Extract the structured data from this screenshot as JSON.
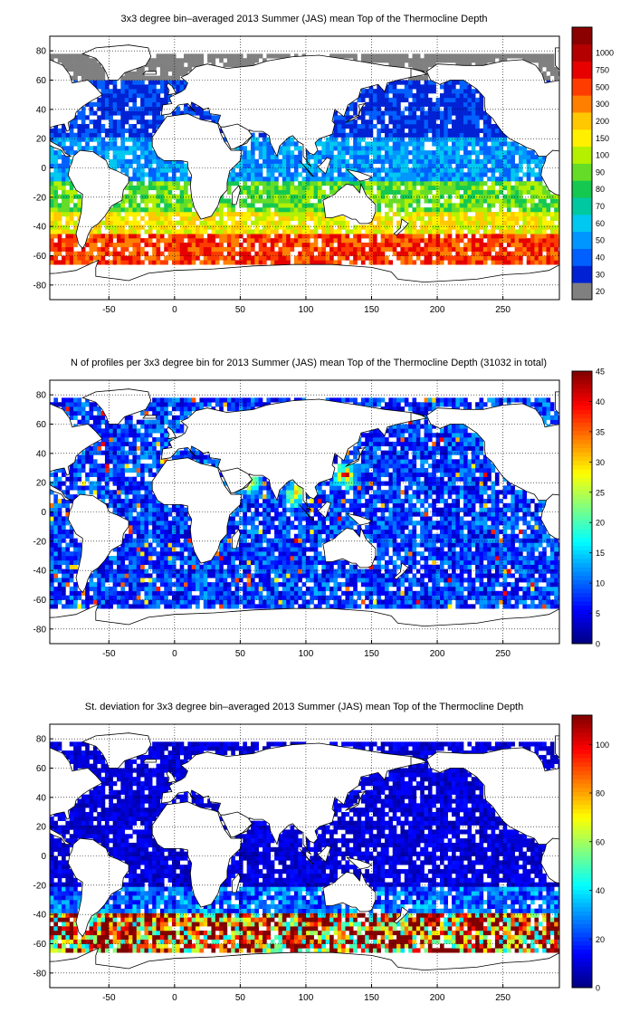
{
  "chart_data": [
    {
      "type": "heatmap",
      "title": "3x3 degree bin–averaged 2013 Summer (JAS) mean Top of the Thermocline Depth",
      "xlim": [
        -95,
        293
      ],
      "ylim": [
        -90,
        90
      ],
      "xticks": [
        "-50",
        "0",
        "50",
        "100",
        "150",
        "200",
        "250"
      ],
      "xtick_values": [
        -50,
        0,
        50,
        100,
        150,
        200,
        250
      ],
      "yticks": [
        "80",
        "60",
        "40",
        "20",
        "0",
        "-20",
        "-40",
        "-60",
        "-80"
      ],
      "ytick_values": [
        80,
        60,
        40,
        20,
        0,
        -20,
        -40,
        -60,
        -80
      ],
      "grid": true,
      "bin_size_deg": 3,
      "colorbar": {
        "type": "categorical",
        "labels": [
          "20",
          "30",
          "40",
          "50",
          "60",
          "70",
          "80",
          "90",
          "100",
          "150",
          "200",
          "300",
          "500",
          "750",
          "1000"
        ],
        "colors": [
          "#808080",
          "#0022d4",
          "#0060ff",
          "#0096ff",
          "#00c8f0",
          "#00c8a0",
          "#14c850",
          "#64dc28",
          "#b4f000",
          "#fff000",
          "#ffc800",
          "#ff8000",
          "#ff3c00",
          "#e60000",
          "#b40000"
        ],
        "top_extra_color": "#8b0000"
      },
      "latitude_pattern": [
        {
          "lat": [
            60,
            80
          ],
          "value": 20,
          "note_color": "grey in N. Pacific/Atlantic"
        },
        {
          "lat": [
            20,
            60
          ],
          "value": 30
        },
        {
          "lat": [
            -10,
            20
          ],
          "value": 50
        },
        {
          "lat": [
            -30,
            -10
          ],
          "value": 90
        },
        {
          "lat": [
            -45,
            -30
          ],
          "value": 150
        },
        {
          "lat": [
            -65,
            -45
          ],
          "value": 500
        }
      ]
    },
    {
      "type": "heatmap",
      "title": "N of profiles per 3x3 degree bin for 2013 Summer (JAS) mean Top of the Thermocline Depth  (31032 in total)",
      "xlim": [
        -95,
        293
      ],
      "ylim": [
        -90,
        90
      ],
      "xticks": [
        "-50",
        "0",
        "50",
        "100",
        "150",
        "200",
        "250"
      ],
      "xtick_values": [
        -50,
        0,
        50,
        100,
        150,
        200,
        250
      ],
      "yticks": [
        "80",
        "60",
        "40",
        "20",
        "0",
        "-20",
        "-40",
        "-60",
        "-80"
      ],
      "ytick_values": [
        80,
        60,
        40,
        20,
        0,
        -20,
        -40,
        -60,
        -80
      ],
      "grid": true,
      "bin_size_deg": 3,
      "colorbar": {
        "type": "continuous",
        "colormap": "jet",
        "range": [
          0,
          45
        ],
        "labels": [
          "45",
          "40",
          "35",
          "30",
          "25",
          "20",
          "15",
          "10",
          "5",
          "0"
        ],
        "label_values": [
          45,
          40,
          35,
          30,
          25,
          20,
          15,
          10,
          5,
          0
        ]
      },
      "typical_value": 8,
      "hotspots": [
        {
          "lon": 130,
          "lat": 25,
          "value": 40
        },
        {
          "lon": 92,
          "lat": 12,
          "value": 35
        },
        {
          "lon": 57,
          "lat": 20,
          "value": 33
        }
      ]
    },
    {
      "type": "heatmap",
      "title": "St. deviation for 3x3 degree bin–averaged 2013 Summer (JAS) mean Top of the Thermocline Depth",
      "xlim": [
        -95,
        293
      ],
      "ylim": [
        -90,
        90
      ],
      "xticks": [
        "-50",
        "0",
        "50",
        "100",
        "150",
        "200",
        "250"
      ],
      "xtick_values": [
        -50,
        0,
        50,
        100,
        150,
        200,
        250
      ],
      "yticks": [
        "80",
        "60",
        "40",
        "20",
        "0",
        "-20",
        "-40",
        "-60",
        "-80"
      ],
      "ytick_values": [
        80,
        60,
        40,
        20,
        0,
        -20,
        -40,
        -60,
        -80
      ],
      "grid": true,
      "bin_size_deg": 3,
      "colorbar": {
        "type": "continuous",
        "colormap": "jet",
        "range": [
          0,
          112
        ],
        "labels": [
          "100",
          "80",
          "60",
          "40",
          "20",
          "0"
        ],
        "label_values": [
          100,
          80,
          60,
          40,
          20,
          0
        ]
      },
      "latitude_pattern": [
        {
          "lat": [
            -20,
            80
          ],
          "value": 10
        },
        {
          "lat": [
            -40,
            -20
          ],
          "value": 25
        },
        {
          "lat": [
            -65,
            -40
          ],
          "value": 90
        }
      ]
    }
  ]
}
